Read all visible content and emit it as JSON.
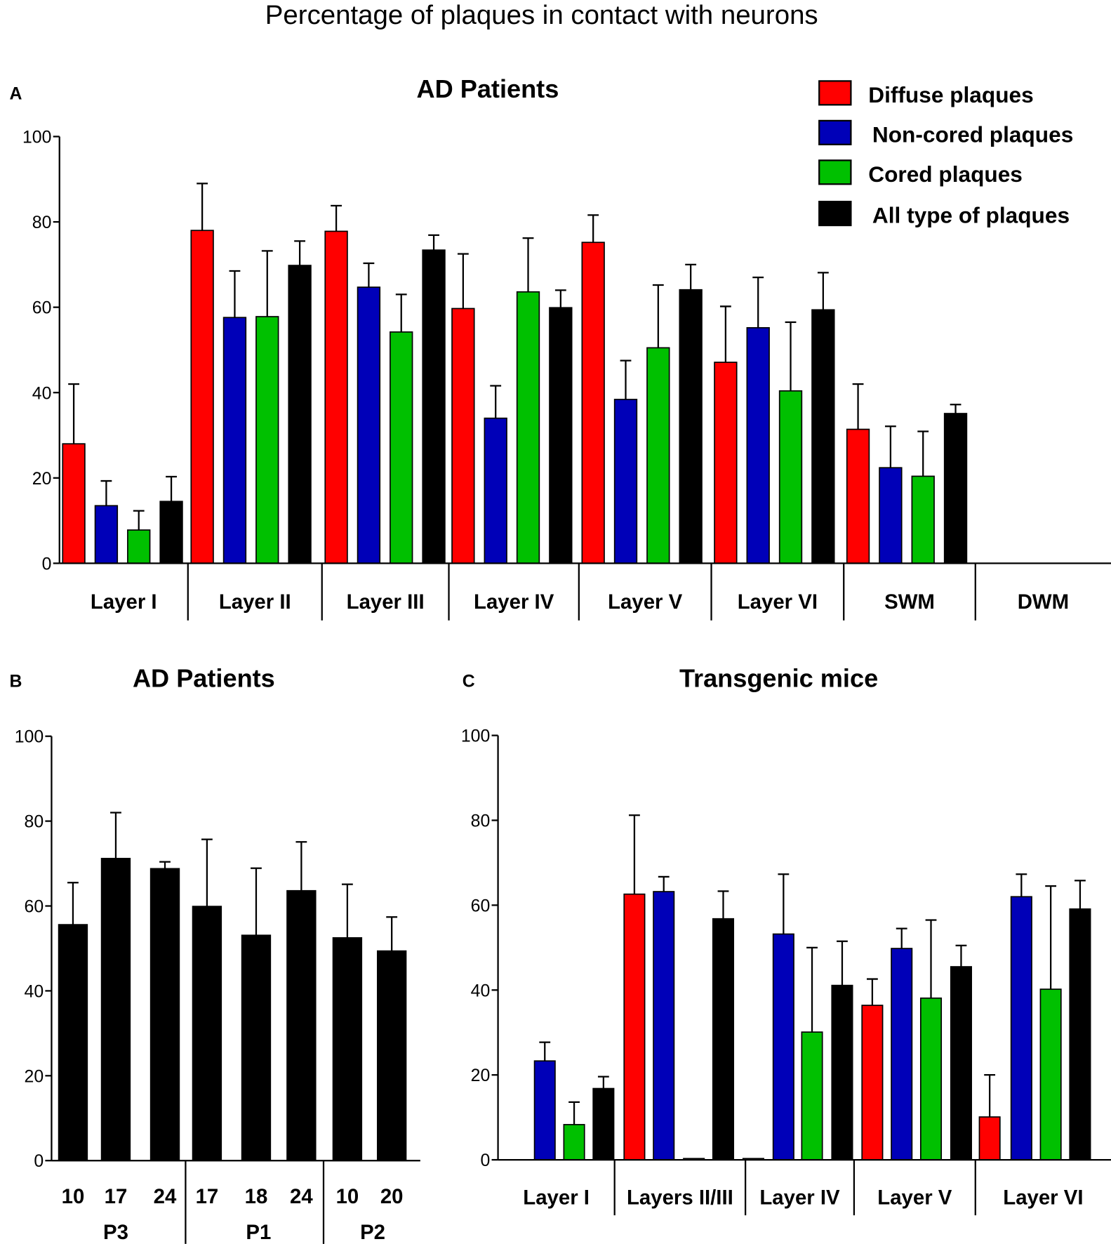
{
  "title": "Percentage of plaques in contact with neurons",
  "colors": {
    "diffuse": "#ff0000",
    "noncored": "#0000b8",
    "cored": "#00c000",
    "all": "#000000"
  },
  "legend": [
    "Diffuse plaques",
    "Non-cored plaques",
    "Cored plaques",
    "All type of plaques"
  ],
  "chart_data": [
    {
      "panel": "A",
      "type": "bar",
      "title": "AD Patients",
      "ylim": [
        0,
        100
      ],
      "yticks": [
        "0",
        "20",
        "40",
        "60",
        "80",
        "100"
      ],
      "categories": [
        "Layer I",
        "Layer II",
        "Layer III",
        "Layer IV",
        "Layer V",
        "Layer VI",
        "SWM",
        "DWM"
      ],
      "legend_placement": "top-right",
      "series": [
        {
          "name": "Diffuse plaques",
          "values": [
            28,
            78,
            77.8,
            59.7,
            75.2,
            47.1,
            31.4,
            null
          ],
          "error_top": [
            42,
            89,
            83.8,
            72.5,
            81.6,
            60.2,
            42,
            null
          ]
        },
        {
          "name": "Non-cored plaques",
          "values": [
            13.5,
            57.6,
            64.7,
            34,
            38.4,
            55.2,
            22.4,
            null
          ],
          "error_top": [
            19.3,
            68.5,
            70.3,
            41.6,
            47.5,
            67,
            32.1,
            null
          ]
        },
        {
          "name": "Cored plaques",
          "values": [
            7.8,
            57.8,
            54.2,
            63.6,
            50.5,
            40.4,
            20.4,
            null
          ],
          "error_top": [
            12.3,
            73.2,
            63,
            76.2,
            65.2,
            56.5,
            30.9,
            null
          ]
        },
        {
          "name": "All type of plaques",
          "values": [
            14.5,
            69.8,
            73.4,
            59.9,
            64.1,
            59.4,
            35.1,
            null
          ],
          "error_top": [
            20.3,
            75.5,
            76.9,
            64,
            70,
            68.1,
            37.2,
            null
          ]
        }
      ]
    },
    {
      "panel": "B",
      "type": "bar",
      "title": "AD Patients",
      "ylim": [
        0,
        100
      ],
      "yticks": [
        "0",
        "20",
        "40",
        "60",
        "80",
        "100"
      ],
      "categories": [
        "10",
        "17",
        "24",
        "17",
        "18",
        "24",
        "10",
        "20"
      ],
      "groups": [
        "P3",
        "P1",
        "P2"
      ],
      "values": [
        55.6,
        71.2,
        68.8,
        59.9,
        53.1,
        63.6,
        52.5,
        49.4
      ],
      "error_top": [
        65.5,
        82,
        70.4,
        75.7,
        68.9,
        75.1,
        65.1,
        57.4
      ]
    },
    {
      "panel": "C",
      "type": "bar",
      "title": "Transgenic mice",
      "ylim": [
        0,
        100
      ],
      "yticks": [
        "0",
        "20",
        "40",
        "60",
        "80",
        "100"
      ],
      "categories": [
        "Layer I",
        "Layers II/III",
        "Layer IV",
        "Layer V",
        "Layer VI"
      ],
      "series": [
        {
          "name": "Diffuse plaques",
          "values": [
            0,
            62.6,
            0.3,
            36.4,
            10.1
          ],
          "error_top": [
            null,
            81.2,
            null,
            42.6,
            20
          ]
        },
        {
          "name": "Non-cored plaques",
          "values": [
            23.3,
            63.2,
            53.2,
            49.8,
            62
          ],
          "error_top": [
            27.7,
            66.7,
            67.3,
            54.5,
            67.3
          ]
        },
        {
          "name": "Cored plaques",
          "values": [
            8.3,
            0.3,
            30.1,
            38.1,
            40.2
          ],
          "error_top": [
            13.6,
            null,
            50,
            56.5,
            64.5
          ]
        },
        {
          "name": "All type of plaques",
          "values": [
            16.8,
            56.8,
            41.1,
            45.5,
            59.1
          ],
          "error_top": [
            19.6,
            63.3,
            51.5,
            50.5,
            65.8
          ]
        }
      ]
    }
  ]
}
